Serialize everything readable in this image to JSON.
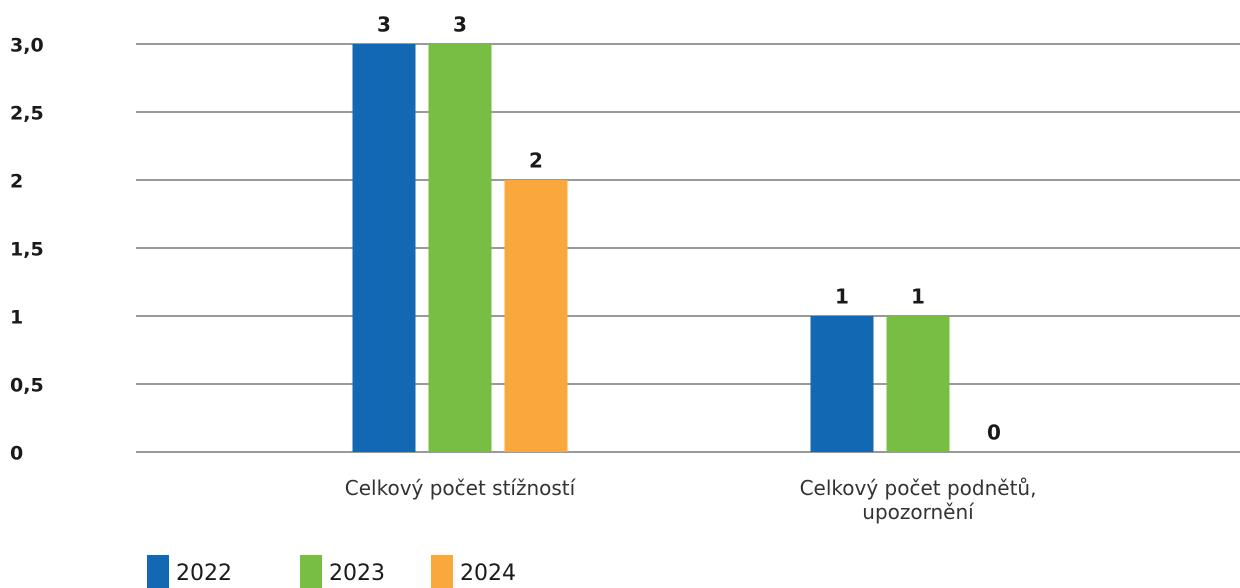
{
  "chart_data": {
    "type": "bar",
    "categories": [
      "Celkový počet stížností",
      "Celkový počet podnětů, upozornění"
    ],
    "series": [
      {
        "name": "2022",
        "color": "#1368b3",
        "values": [
          3,
          1
        ]
      },
      {
        "name": "2023",
        "color": "#78be43",
        "values": [
          3,
          1
        ]
      },
      {
        "name": "2024",
        "color": "#f9a83c",
        "values": [
          2,
          0
        ]
      }
    ],
    "ylim": [
      0,
      3
    ],
    "yticks": [
      0,
      {
        "value": 0.5,
        "label": "0,5"
      },
      1,
      {
        "value": 1.5,
        "label": "1,5"
      },
      2,
      {
        "value": 2.5,
        "label": "2,5"
      },
      {
        "value": 3,
        "label": "3,0"
      }
    ],
    "grid": true,
    "legend": "bottom"
  }
}
